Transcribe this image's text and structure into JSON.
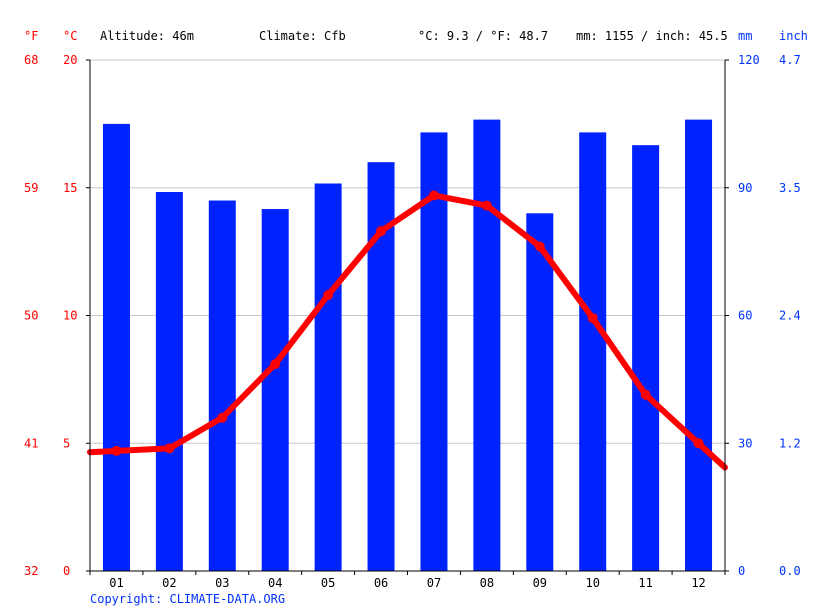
{
  "header": {
    "unit_f": "°F",
    "unit_c": "°C",
    "altitude": "Altitude: 46m",
    "climate": "Climate: Cfb",
    "temp_avg": "°C: 9.3 / °F: 48.7",
    "precip_avg": "mm: 1155 / inch: 45.5",
    "unit_mm": "mm",
    "unit_inch": "inch"
  },
  "copyright": "Copyright: CLIMATE-DATA.ORG",
  "colors": {
    "temperature": "#ff0000",
    "precipitation": "#0022ff",
    "grid": "#c8c8c8",
    "left_axis_text": "#ff0000",
    "right_axis_text": "#0033ff"
  },
  "chart_data": {
    "type": "bar",
    "categories": [
      "01",
      "02",
      "03",
      "04",
      "05",
      "06",
      "07",
      "08",
      "09",
      "10",
      "11",
      "12"
    ],
    "series": [
      {
        "type": "bar",
        "axis": "right",
        "unit": "mm",
        "values": [
          105,
          89,
          87,
          85,
          91,
          96,
          103,
          106,
          84,
          103,
          100,
          106
        ]
      },
      {
        "type": "line",
        "axis": "left",
        "unit": "°C",
        "values": [
          4.7,
          4.8,
          6.0,
          8.1,
          10.8,
          13.3,
          14.7,
          14.3,
          12.7,
          9.9,
          6.9,
          5.0
        ]
      }
    ],
    "left_axis": {
      "celsius_ticks": [
        "0",
        "5",
        "10",
        "15",
        "20"
      ],
      "fahrenheit_ticks": [
        "32",
        "41",
        "50",
        "59",
        "68"
      ],
      "range": [
        0,
        20
      ]
    },
    "right_axis": {
      "mm_ticks": [
        "0",
        "30",
        "60",
        "90",
        "120"
      ],
      "inch_ticks": [
        "0.0",
        "1.2",
        "2.4",
        "3.5",
        "4.7"
      ],
      "range": [
        0,
        120
      ]
    },
    "grid": true
  }
}
